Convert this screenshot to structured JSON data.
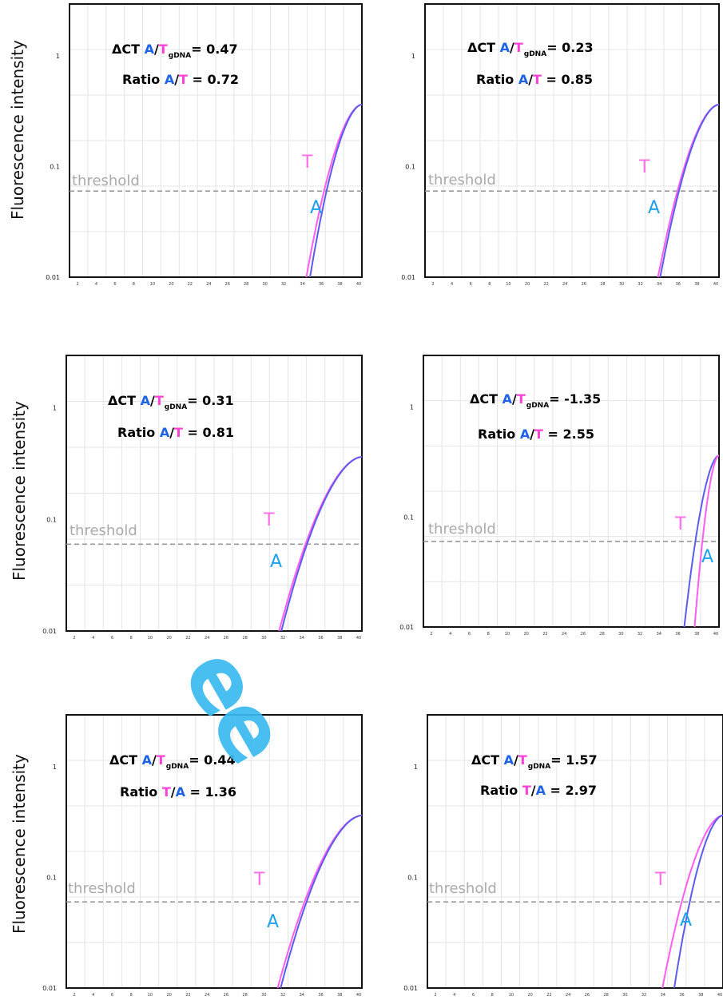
{
  "y_axis_label": "Fluorescence intensity",
  "watermark": "ee",
  "colors": {
    "A": "#5b5bf0",
    "T": "#ff5cf0",
    "A_label": "#1ea0f0",
    "T_label": "#ff6de6",
    "threshold": "#999999",
    "grid": "#e4e4e4",
    "ann_A": "#1e63e6",
    "ann_T": "#ff3fd6"
  },
  "chart_data": [
    {
      "type": "line",
      "annotation": {
        "dct_prefix": "ΔCT ",
        "first": "A",
        "second": "T",
        "sub": "gDNA",
        "dct_value": "= 0.47",
        "ratio_prefix": "Ratio ",
        "ratio_first": "A",
        "ratio_second": "T",
        "ratio_value": " = 0.72"
      },
      "threshold_label": "threshold",
      "series": [
        {
          "name": "T",
          "x": [
            32.4,
            40.0
          ]
        },
        {
          "name": "A",
          "x": [
            32.9,
            40.0
          ]
        }
      ],
      "yticks": [
        "1",
        "0.1",
        "0.01"
      ],
      "ylim": [
        0.01,
        1
      ],
      "xlim": [
        0,
        40
      ],
      "threshold_y": 0.06,
      "grid": true
    },
    {
      "type": "line",
      "annotation": {
        "dct_prefix": "ΔCT ",
        "first": "A",
        "second": "T",
        "sub": "gDNA",
        "dct_value": "= 0.23",
        "ratio_prefix": "Ratio ",
        "ratio_first": "A",
        "ratio_second": "T",
        "ratio_value": " = 0.85"
      },
      "threshold_label": "threshold",
      "series": [
        {
          "name": "T",
          "x": [
            31.7,
            40.0
          ]
        },
        {
          "name": "A",
          "x": [
            32.0,
            40.0
          ]
        }
      ],
      "yticks": [
        "1",
        "0.1",
        "0.01"
      ],
      "ylim": [
        0.01,
        1
      ],
      "xlim": [
        0,
        40
      ],
      "threshold_y": 0.06,
      "grid": true
    },
    {
      "type": "line",
      "annotation": {
        "dct_prefix": "ΔCT ",
        "first": "A",
        "second": "T",
        "sub": "gDNA",
        "dct_value": "= 0.31",
        "ratio_prefix": "Ratio ",
        "ratio_first": "A",
        "ratio_second": "T",
        "ratio_value": " = 0.81"
      },
      "threshold_label": "threshold",
      "series": [
        {
          "name": "T",
          "x": [
            28.8,
            40.0
          ]
        },
        {
          "name": "A",
          "x": [
            29.1,
            40.0
          ]
        }
      ],
      "yticks": [
        "1",
        "0.1",
        "0.01"
      ],
      "ylim": [
        0.01,
        1
      ],
      "xlim": [
        0,
        40
      ],
      "threshold_y": 0.06,
      "grid": true
    },
    {
      "type": "line",
      "annotation": {
        "dct_prefix": "ΔCT ",
        "first": "A",
        "second": "T",
        "sub": "gDNA",
        "dct_value": "= -1.35",
        "ratio_prefix": "Ratio ",
        "ratio_first": "A",
        "ratio_second": "T",
        "ratio_value": " = 2.55"
      },
      "threshold_label": "threshold",
      "series": [
        {
          "name": "A",
          "x": [
            35.3,
            40.0
          ]
        },
        {
          "name": "T",
          "x": [
            36.7,
            40.0
          ]
        }
      ],
      "yticks": [
        "1",
        "0.1",
        "0.01"
      ],
      "ylim": [
        0.01,
        1
      ],
      "xlim": [
        0,
        40
      ],
      "threshold_y": 0.06,
      "grid": true
    },
    {
      "type": "line",
      "annotation": {
        "dct_prefix": "ΔCT ",
        "first": "A",
        "second": "T",
        "sub": "gDNA",
        "dct_value": "= 0.44",
        "ratio_prefix": "Ratio ",
        "ratio_first": "T",
        "ratio_second": "A",
        "ratio_value": " = 1.36"
      },
      "threshold_label": "threshold",
      "series": [
        {
          "name": "T",
          "x": [
            28.6,
            40.0
          ]
        },
        {
          "name": "A",
          "x": [
            29.0,
            40.0
          ]
        }
      ],
      "yticks": [
        "1",
        "0.1",
        "0.01"
      ],
      "ylim": [
        0.01,
        1
      ],
      "xlim": [
        0,
        40
      ],
      "threshold_y": 0.06,
      "grid": true
    },
    {
      "type": "line",
      "annotation": {
        "dct_prefix": "ΔCT ",
        "first": "A",
        "second": "T",
        "sub": "gDNA",
        "dct_value": "= 1.57",
        "ratio_prefix": "Ratio ",
        "ratio_first": "T",
        "ratio_second": "A",
        "ratio_value": " = 2.97"
      },
      "threshold_label": "threshold",
      "series": [
        {
          "name": "T",
          "x": [
            31.8,
            40.0
          ]
        },
        {
          "name": "A",
          "x": [
            33.4,
            40.0
          ]
        }
      ],
      "yticks": [
        "1",
        "0.1",
        "0.01"
      ],
      "ylim": [
        0.01,
        1
      ],
      "xlim": [
        0,
        40
      ],
      "threshold_y": 0.06,
      "grid": true
    }
  ]
}
